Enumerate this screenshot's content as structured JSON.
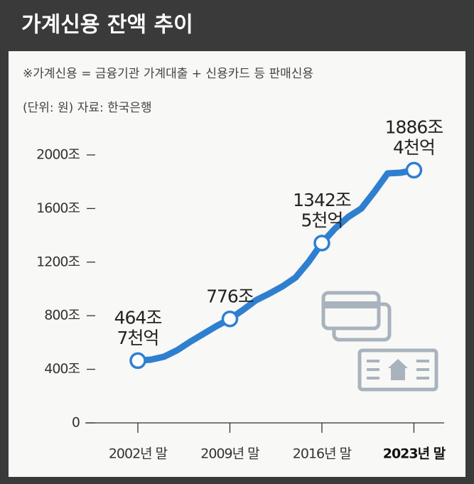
{
  "chart_data": {
    "type": "line",
    "title": "가계신용 잔액 추이",
    "subtitle": "※가계신용 = 금융기관 가계대출 + 신용카드 등 판매신용",
    "note": "(단위: 원)  자료: 한국은행",
    "x": [
      2002,
      2003,
      2004,
      2005,
      2006,
      2007,
      2008,
      2009,
      2010,
      2011,
      2012,
      2013,
      2014,
      2015,
      2016,
      2017,
      2018,
      2019,
      2020,
      2021,
      2022,
      2023
    ],
    "series": [
      {
        "color": "#2f7fd0",
        "values": [
          464.7,
          472.1,
          494.2,
          542.9,
          607.0,
          665.3,
          723.5,
          776.0,
          843.2,
          916.2,
          964.9,
          1019.0,
          1085.3,
          1203.1,
          1342.5,
          1450.8,
          1536.7,
          1600.3,
          1726.1,
          1862.0,
          1867.6,
          1886.4
        ],
        "value_labels": [
          "464조\n7천억",
          null,
          null,
          null,
          null,
          null,
          null,
          "776조",
          null,
          null,
          null,
          null,
          null,
          null,
          "1342조\n5천억",
          null,
          null,
          null,
          null,
          null,
          null,
          "1886조\n4천억"
        ]
      }
    ],
    "xlim": [
      1998,
      2025.3
    ],
    "xticks": [
      {
        "value": 2002,
        "label": "2002년 말"
      },
      {
        "value": 2009,
        "label": "2009년 말"
      },
      {
        "value": 2016,
        "label": "2016년 말"
      },
      {
        "value": 2023,
        "label": "2023년 말"
      }
    ],
    "ylim": [
      0,
      2000
    ],
    "yticks": [
      0,
      {
        "value": 400,
        "label": "400조"
      },
      {
        "value": 800,
        "label": "800조"
      },
      {
        "value": 1200,
        "label": "1200조"
      },
      {
        "value": 1600,
        "label": "1600조"
      },
      {
        "value": 2000,
        "label": "2000조"
      }
    ],
    "grid": false
  }
}
